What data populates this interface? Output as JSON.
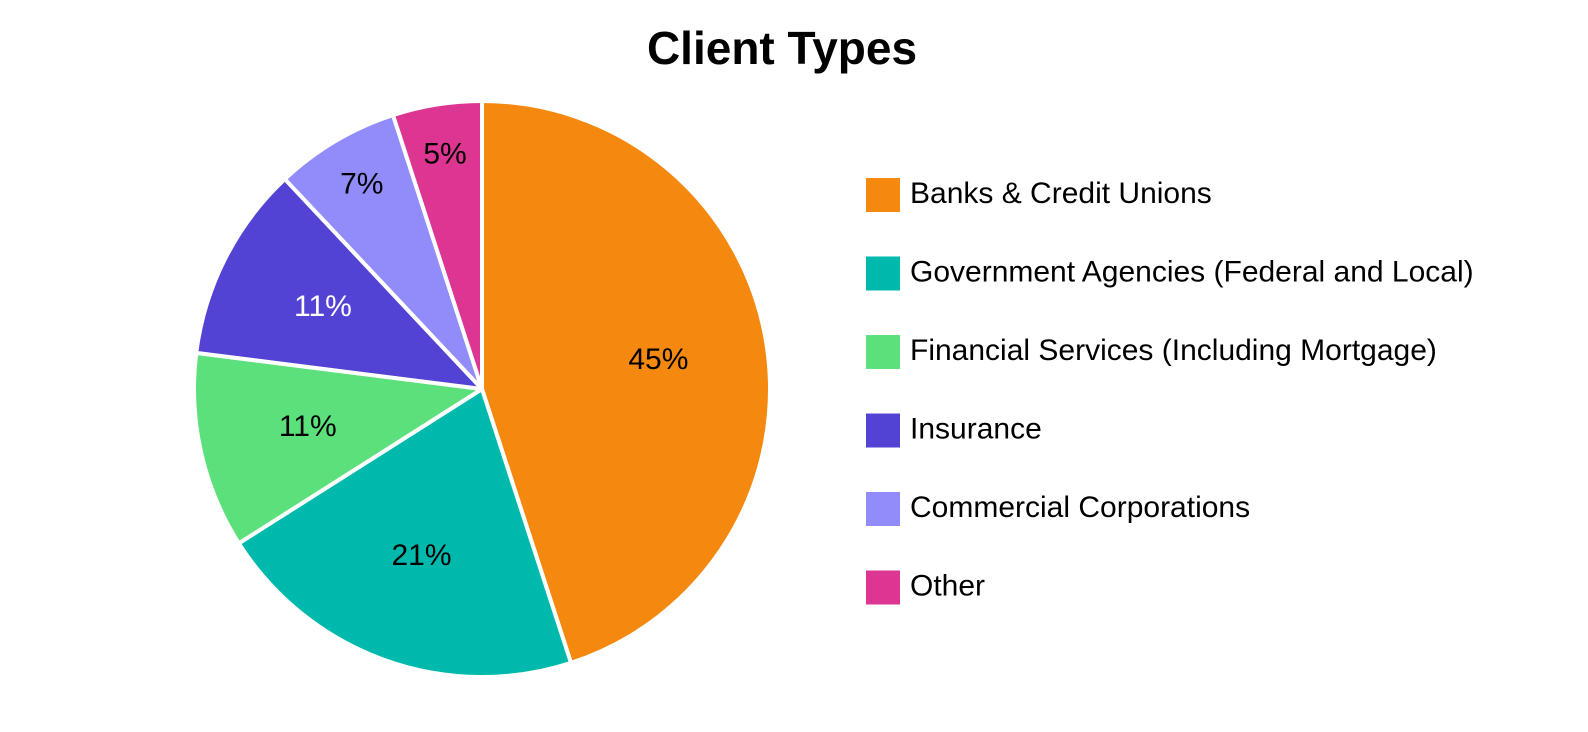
{
  "chart_data": {
    "type": "pie",
    "title": "Client Types",
    "categories": [
      "Banks & Credit Unions",
      "Government Agencies (Federal and Local)",
      "Financial Services (Including Mortgage)",
      "Insurance",
      "Commercial Corporations",
      "Other"
    ],
    "values": [
      45,
      21,
      11,
      11,
      7,
      5
    ],
    "value_labels": [
      "45%",
      "21%",
      "11%",
      "11%",
      "7%",
      "5%"
    ],
    "colors": [
      "#f5890f",
      "#00b9ad",
      "#5ce07c",
      "#5243d4",
      "#918cfa",
      "#dd3592"
    ],
    "legend": "right"
  }
}
